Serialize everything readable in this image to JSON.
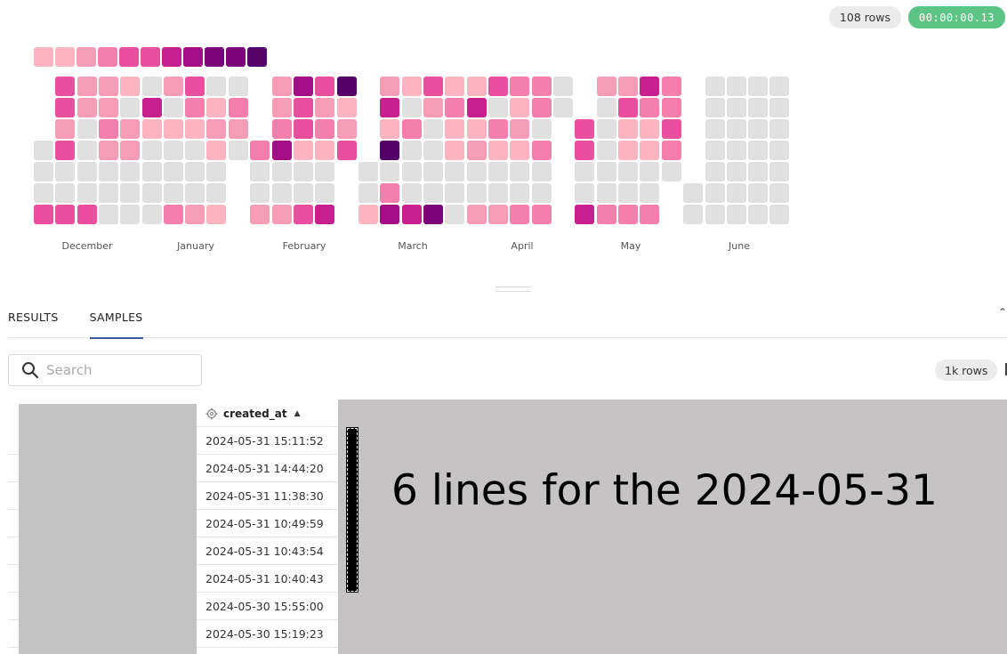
{
  "header": {
    "row_count": "108 rows",
    "elapsed": "00:00:00.13"
  },
  "heatmap": {
    "colors": {
      "none": "#e0e0e0",
      "l1": "#fbb4c0",
      "l2": "#f79cb6",
      "l3": "#f57fac",
      "l4": "#e94f9e",
      "l5": "#c81f8f",
      "l6": "#a30d86",
      "l7": "#7b037a",
      "l8": "#560169"
    },
    "legend": [
      "l1",
      "l1",
      "l2",
      "l3",
      "l4",
      "l4",
      "l5",
      "l6",
      "l7",
      "l7",
      "l8"
    ],
    "months": [
      "December",
      "January",
      "February",
      "March",
      "April",
      "May",
      "June"
    ],
    "weeks": [
      {
        "col": 0,
        "days": [
          "",
          "",
          "",
          "none",
          "none",
          "none",
          "l4"
        ]
      },
      {
        "col": 1,
        "days": [
          "l4",
          "l4",
          "l2",
          "l4",
          "none",
          "none",
          "l4"
        ]
      },
      {
        "col": 2,
        "days": [
          "l2",
          "l2",
          "none",
          "none",
          "none",
          "none",
          "l4"
        ]
      },
      {
        "col": 3,
        "days": [
          "l2",
          "l2",
          "l3",
          "l2",
          "none",
          "none",
          "none"
        ]
      },
      {
        "col": 4,
        "days": [
          "l1",
          "none",
          "l2",
          "l2",
          "none",
          "none",
          "none"
        ]
      },
      {
        "col": 5,
        "days": [
          "none",
          "l5",
          "l1",
          "none",
          "none",
          "none",
          "none"
        ]
      },
      {
        "col": 6,
        "days": [
          "l2",
          "none",
          "l1",
          "none",
          "none",
          "none",
          "l3"
        ]
      },
      {
        "col": 7,
        "days": [
          "l4",
          "l3",
          "l1",
          "none",
          "none",
          "none",
          "l2"
        ]
      },
      {
        "col": 8,
        "days": [
          "none",
          "l1",
          "l2",
          "l1",
          "none",
          "none",
          "l1"
        ]
      },
      {
        "col": 9,
        "days": [
          "none",
          "l3",
          "l2",
          "none",
          "",
          "",
          ""
        ]
      },
      {
        "col": 10,
        "days": [
          "",
          "",
          "",
          "l3",
          "none",
          "none",
          "l2"
        ]
      },
      {
        "col": 11,
        "days": [
          "l2",
          "l2",
          "l3",
          "l6",
          "none",
          "none",
          "l2"
        ]
      },
      {
        "col": 12,
        "days": [
          "l6",
          "l4",
          "l4",
          "l1",
          "none",
          "none",
          "l4"
        ]
      },
      {
        "col": 13,
        "days": [
          "l4",
          "l2",
          "l3",
          "l1",
          "none",
          "none",
          "l5"
        ]
      },
      {
        "col": 14,
        "days": [
          "l8",
          "l1",
          "l2",
          "l4",
          "",
          "",
          ""
        ]
      },
      {
        "col": 15,
        "days": [
          "",
          "",
          "",
          "",
          "none",
          "none",
          "l1"
        ]
      },
      {
        "col": 16,
        "days": [
          "l2",
          "l5",
          "l1",
          "l8",
          "none",
          "l3",
          "l6"
        ]
      },
      {
        "col": 17,
        "days": [
          "l1",
          "none",
          "l3",
          "none",
          "none",
          "none",
          "l5"
        ]
      },
      {
        "col": 18,
        "days": [
          "l4",
          "l2",
          "none",
          "none",
          "none",
          "none",
          "l7"
        ]
      },
      {
        "col": 19,
        "days": [
          "l1",
          "l3",
          "l1",
          "l1",
          "none",
          "none",
          "none"
        ]
      },
      {
        "col": 20,
        "days": [
          "l1",
          "l5",
          "l1",
          "l2",
          "none",
          "none",
          "l2"
        ]
      },
      {
        "col": 21,
        "days": [
          "l4",
          "none",
          "l3",
          "l1",
          "none",
          "none",
          "l2"
        ]
      },
      {
        "col": 22,
        "days": [
          "l3",
          "l1",
          "l2",
          "l1",
          "none",
          "none",
          "l3"
        ]
      },
      {
        "col": 23,
        "days": [
          "l3",
          "l3",
          "none",
          "l3",
          "none",
          "none",
          "l3"
        ]
      },
      {
        "col": 24,
        "days": [
          "none",
          "none",
          "",
          "",
          "",
          "",
          ""
        ]
      },
      {
        "col": 25,
        "days": [
          "",
          "",
          "l4",
          "l4",
          "none",
          "none",
          "l5"
        ]
      },
      {
        "col": 26,
        "days": [
          "l2",
          "none",
          "none",
          "none",
          "none",
          "none",
          "l3"
        ]
      },
      {
        "col": 27,
        "days": [
          "l2",
          "l4",
          "l1",
          "l1",
          "none",
          "none",
          "l3"
        ]
      },
      {
        "col": 28,
        "days": [
          "l5",
          "l3",
          "l1",
          "l1",
          "none",
          "none",
          "l3"
        ]
      },
      {
        "col": 29,
        "days": [
          "l3",
          "l3",
          "l4",
          "l3",
          "none",
          "",
          ""
        ]
      },
      {
        "col": 30,
        "days": [
          "",
          "",
          "",
          "",
          "",
          "none",
          "none"
        ]
      },
      {
        "col": 31,
        "days": [
          "none",
          "none",
          "none",
          "none",
          "none",
          "none",
          "none"
        ]
      },
      {
        "col": 32,
        "days": [
          "none",
          "none",
          "none",
          "none",
          "none",
          "none",
          "none"
        ]
      },
      {
        "col": 33,
        "days": [
          "none",
          "none",
          "none",
          "none",
          "none",
          "none",
          "none"
        ]
      },
      {
        "col": 34,
        "days": [
          "none",
          "none",
          "none",
          "none",
          "none",
          "none",
          "none"
        ]
      }
    ]
  },
  "tabs": {
    "results": "RESULTS",
    "samples": "SAMPLES"
  },
  "search": {
    "placeholder": "Search"
  },
  "samples": {
    "row_count": "1k rows"
  },
  "table": {
    "column": "created_at",
    "rows": [
      "2024-05-31 15:11:52",
      "2024-05-31 14:44:20",
      "2024-05-31 11:38:30",
      "2024-05-31 10:49:59",
      "2024-05-31 10:43:54",
      "2024-05-31 10:40:43",
      "2024-05-30 15:55:00",
      "2024-05-30 15:19:23"
    ]
  },
  "annotation": {
    "text": "6 lines for the 2024-05-31"
  }
}
